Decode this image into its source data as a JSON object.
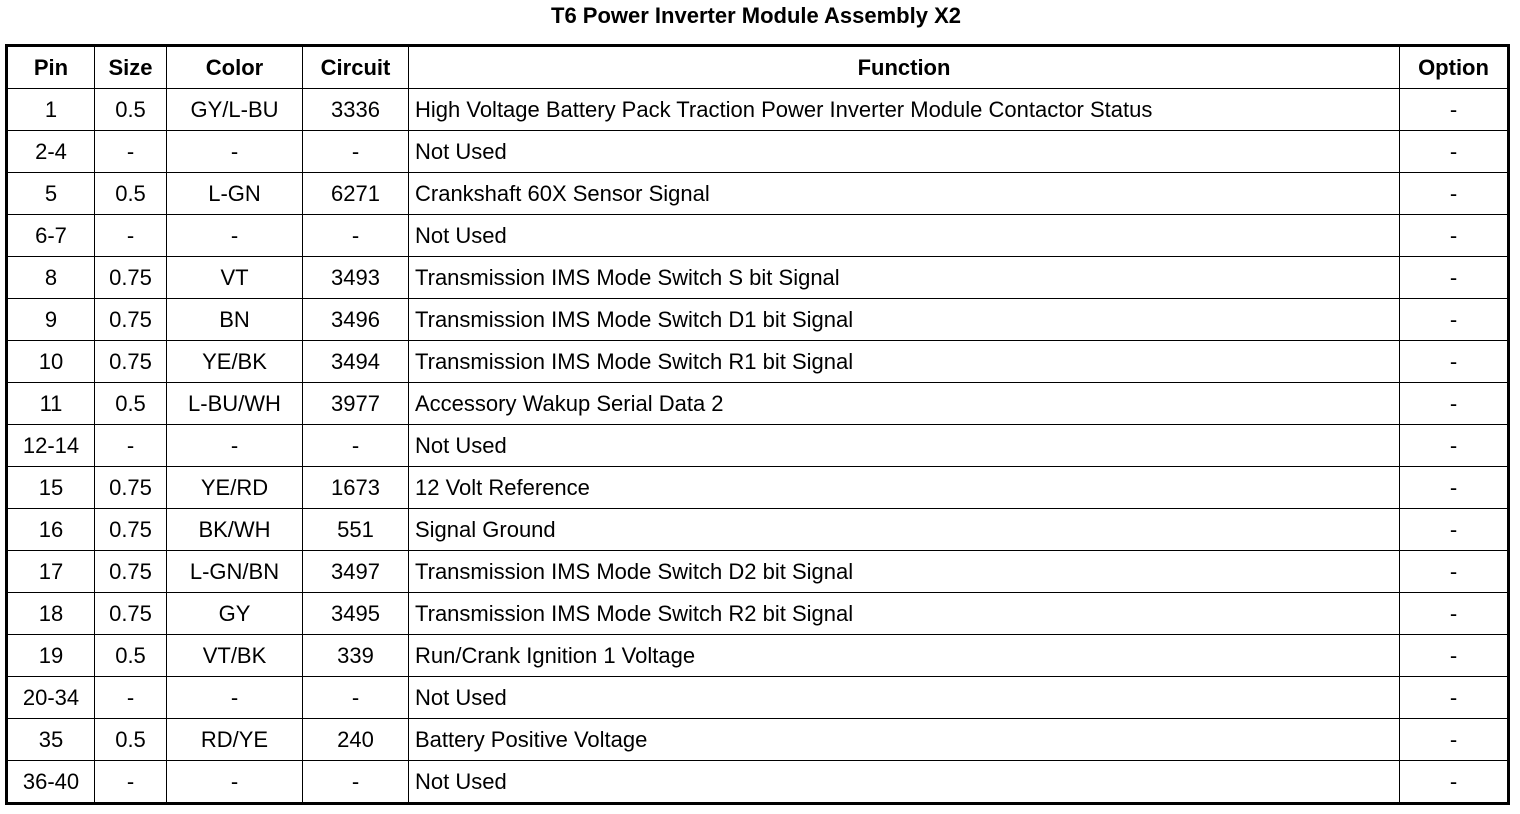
{
  "title": "T6 Power Inverter Module Assembly X2",
  "headers": [
    "Pin",
    "Size",
    "Color",
    "Circuit",
    "Function",
    "Option"
  ],
  "rows": [
    [
      "1",
      "0.5",
      "GY/L-BU",
      "3336",
      "High Voltage Battery Pack Traction Power Inverter Module Contactor Status",
      "-"
    ],
    [
      "2-4",
      "-",
      "-",
      "-",
      "Not Used",
      "-"
    ],
    [
      "5",
      "0.5",
      "L-GN",
      "6271",
      "Crankshaft 60X Sensor Signal",
      "-"
    ],
    [
      "6-7",
      "-",
      "-",
      "-",
      "Not Used",
      "-"
    ],
    [
      "8",
      "0.75",
      "VT",
      "3493",
      "Transmission IMS Mode Switch S bit Signal",
      "-"
    ],
    [
      "9",
      "0.75",
      "BN",
      "3496",
      "Transmission IMS Mode Switch D1 bit Signal",
      "-"
    ],
    [
      "10",
      "0.75",
      "YE/BK",
      "3494",
      "Transmission IMS Mode Switch R1 bit Signal",
      "-"
    ],
    [
      "11",
      "0.5",
      "L-BU/WH",
      "3977",
      "Accessory Wakup Serial Data 2",
      "-"
    ],
    [
      "12-14",
      "-",
      "-",
      "-",
      "Not Used",
      "-"
    ],
    [
      "15",
      "0.75",
      "YE/RD",
      "1673",
      "12 Volt Reference",
      "-"
    ],
    [
      "16",
      "0.75",
      "BK/WH",
      "551",
      "Signal Ground",
      "-"
    ],
    [
      "17",
      "0.75",
      "L-GN/BN",
      "3497",
      "Transmission IMS Mode Switch D2 bit Signal",
      "-"
    ],
    [
      "18",
      "0.75",
      "GY",
      "3495",
      "Transmission IMS Mode Switch R2 bit Signal",
      "-"
    ],
    [
      "19",
      "0.5",
      "VT/BK",
      "339",
      "Run/Crank Ignition 1 Voltage",
      "-"
    ],
    [
      "20-34",
      "-",
      "-",
      "-",
      "Not Used",
      "-"
    ],
    [
      "35",
      "0.5",
      "RD/YE",
      "240",
      "Battery Positive Voltage",
      "-"
    ],
    [
      "36-40",
      "-",
      "-",
      "-",
      "Not Used",
      "-"
    ]
  ]
}
